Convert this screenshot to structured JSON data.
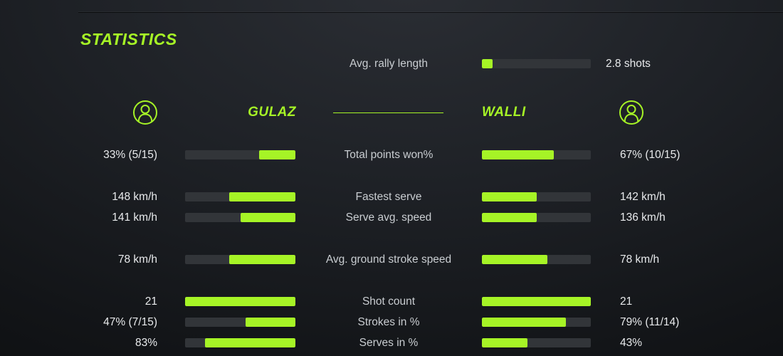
{
  "title": "STATISTICS",
  "colors": {
    "accent": "#a6f426",
    "track": "#323539",
    "value_text": "#e8eaec",
    "label_text": "#c9cdd1"
  },
  "rally": {
    "label": "Avg. rally length",
    "value": "2.8 shots",
    "fill_pct": 10
  },
  "players": {
    "left": {
      "name": "GULAZ",
      "icon": "user-icon"
    },
    "right": {
      "name": "WALLI",
      "icon": "user-icon"
    }
  },
  "rows": [
    {
      "label": "Total points won%",
      "left_value": "33% (5/15)",
      "left_fill": 33,
      "right_value": "67% (10/15)",
      "right_fill": 66
    },
    {
      "label": "Fastest serve",
      "left_value": "148 km/h",
      "left_fill": 60,
      "right_value": "142 km/h",
      "right_fill": 50
    },
    {
      "label": "Serve avg. speed",
      "left_value": "141 km/h",
      "left_fill": 50,
      "right_value": "136 km/h",
      "right_fill": 50
    },
    {
      "label": "Avg. ground stroke speed",
      "left_value": "78 km/h",
      "left_fill": 60,
      "right_value": "78 km/h",
      "right_fill": 60
    },
    {
      "label": "Shot count",
      "left_value": "21",
      "left_fill": 100,
      "right_value": "21",
      "right_fill": 100
    },
    {
      "label": "Strokes in %",
      "left_value": "47% (7/15)",
      "left_fill": 45,
      "right_value": "79% (11/14)",
      "right_fill": 77
    },
    {
      "label": "Serves in %",
      "left_value": "83%",
      "left_fill": 82,
      "right_value": "43%",
      "right_fill": 42
    }
  ]
}
